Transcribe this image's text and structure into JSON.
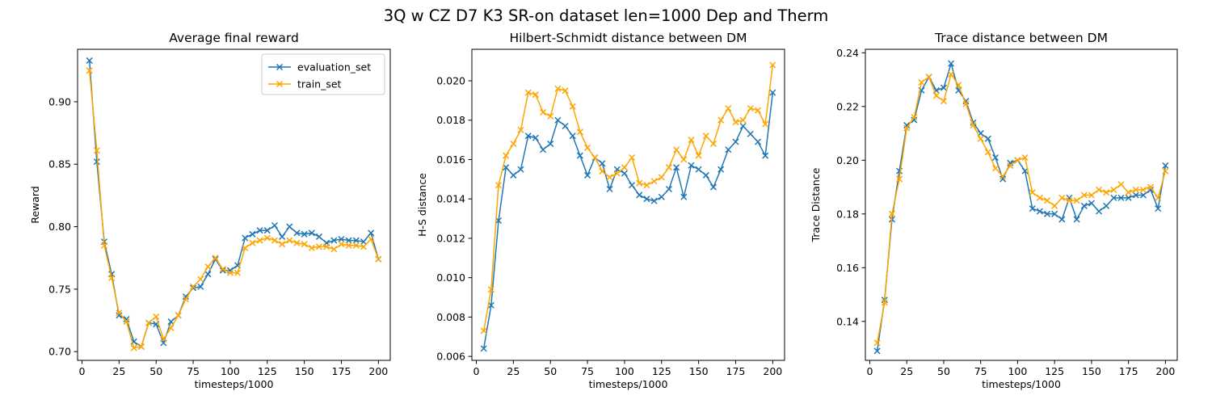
{
  "figure": {
    "suptitle": "3Q w CZ D7 K3 SR-on dataset len=1000 Dep and Therm",
    "colors": {
      "evaluation_set": "#1f77b4",
      "train_set": "#ffa500"
    }
  },
  "chart_data": [
    {
      "type": "line",
      "title": "Average final reward",
      "xlabel": "timesteps/1000",
      "ylabel": "Reward",
      "xlim": [
        -3,
        208
      ],
      "ylim": [
        0.693,
        0.942
      ],
      "xticks": [
        0,
        25,
        50,
        75,
        100,
        125,
        150,
        175,
        200
      ],
      "yticks": [
        0.7,
        0.75,
        0.8,
        0.85,
        0.9
      ],
      "ytick_labels": [
        "0.70",
        "0.75",
        "0.80",
        "0.85",
        "0.90"
      ],
      "legend": {
        "position": "top-right",
        "entries": [
          "evaluation_set",
          "train_set"
        ]
      },
      "marker": "x",
      "x": [
        5,
        10,
        15,
        20,
        25,
        30,
        35,
        40,
        45,
        50,
        55,
        60,
        65,
        70,
        75,
        80,
        85,
        90,
        95,
        100,
        105,
        110,
        115,
        120,
        125,
        130,
        135,
        140,
        145,
        150,
        155,
        160,
        165,
        170,
        175,
        180,
        185,
        190,
        195,
        200
      ],
      "series": [
        {
          "name": "evaluation_set",
          "color": "#1f77b4",
          "values": [
            0.933,
            0.852,
            0.788,
            0.762,
            0.729,
            0.726,
            0.708,
            0.704,
            0.723,
            0.722,
            0.707,
            0.724,
            0.729,
            0.744,
            0.751,
            0.752,
            0.762,
            0.774,
            0.765,
            0.765,
            0.769,
            0.791,
            0.794,
            0.797,
            0.797,
            0.801,
            0.792,
            0.8,
            0.795,
            0.794,
            0.795,
            0.792,
            0.787,
            0.789,
            0.79,
            0.789,
            0.789,
            0.788,
            0.795,
            0.774
          ]
        },
        {
          "name": "train_set",
          "color": "#ffa500",
          "values": [
            0.925,
            0.861,
            0.785,
            0.759,
            0.731,
            0.724,
            0.703,
            0.704,
            0.723,
            0.728,
            0.71,
            0.719,
            0.729,
            0.742,
            0.752,
            0.758,
            0.768,
            0.775,
            0.766,
            0.763,
            0.763,
            0.783,
            0.787,
            0.789,
            0.791,
            0.789,
            0.786,
            0.789,
            0.787,
            0.786,
            0.783,
            0.784,
            0.784,
            0.782,
            0.786,
            0.785,
            0.785,
            0.784,
            0.79,
            0.774
          ]
        }
      ]
    },
    {
      "type": "line",
      "title": "Hilbert-Schmidt distance between DM",
      "xlabel": "timesteps/1000",
      "ylabel": "H-S distance",
      "xlim": [
        -3,
        208
      ],
      "ylim": [
        0.0058,
        0.0216
      ],
      "xticks": [
        0,
        25,
        50,
        75,
        100,
        125,
        150,
        175,
        200
      ],
      "yticks": [
        0.006,
        0.008,
        0.01,
        0.012,
        0.014,
        0.016,
        0.018,
        0.02
      ],
      "ytick_labels": [
        "0.006",
        "0.008",
        "0.010",
        "0.012",
        "0.014",
        "0.016",
        "0.018",
        "0.020"
      ],
      "marker": "x",
      "x": [
        5,
        10,
        15,
        20,
        25,
        30,
        35,
        40,
        45,
        50,
        55,
        60,
        65,
        70,
        75,
        80,
        85,
        90,
        95,
        100,
        105,
        110,
        115,
        120,
        125,
        130,
        135,
        140,
        145,
        150,
        155,
        160,
        165,
        170,
        175,
        180,
        185,
        190,
        195,
        200
      ],
      "series": [
        {
          "name": "evaluation_set",
          "color": "#1f77b4",
          "values": [
            0.0064,
            0.0086,
            0.0129,
            0.0156,
            0.0152,
            0.0155,
            0.0172,
            0.0171,
            0.0165,
            0.0168,
            0.018,
            0.0177,
            0.0172,
            0.0162,
            0.0152,
            0.0161,
            0.0158,
            0.0145,
            0.0155,
            0.0153,
            0.0147,
            0.0142,
            0.014,
            0.0139,
            0.0141,
            0.0145,
            0.0156,
            0.0141,
            0.0157,
            0.0155,
            0.0152,
            0.0146,
            0.0155,
            0.0165,
            0.0169,
            0.0177,
            0.0173,
            0.0169,
            0.0162,
            0.0194
          ]
        },
        {
          "name": "train_set",
          "color": "#ffa500",
          "values": [
            0.0073,
            0.0094,
            0.0147,
            0.0162,
            0.0168,
            0.0175,
            0.0194,
            0.0193,
            0.0184,
            0.0182,
            0.0196,
            0.0195,
            0.0187,
            0.0174,
            0.0166,
            0.0161,
            0.0154,
            0.0151,
            0.0153,
            0.0156,
            0.0161,
            0.0148,
            0.0147,
            0.0149,
            0.0151,
            0.0156,
            0.0165,
            0.016,
            0.017,
            0.0162,
            0.0172,
            0.0168,
            0.018,
            0.0186,
            0.0179,
            0.018,
            0.0186,
            0.0185,
            0.0178,
            0.0208
          ]
        }
      ]
    },
    {
      "type": "line",
      "title": "Trace distance between DM",
      "xlabel": "timesteps/1000",
      "ylabel": "Trace Distance",
      "xlim": [
        -3,
        208
      ],
      "ylim": [
        0.1255,
        0.2413
      ],
      "xticks": [
        0,
        25,
        50,
        75,
        100,
        125,
        150,
        175,
        200
      ],
      "yticks": [
        0.14,
        0.16,
        0.18,
        0.2,
        0.22,
        0.24
      ],
      "ytick_labels": [
        "0.14",
        "0.16",
        "0.18",
        "0.20",
        "0.22",
        "0.24"
      ],
      "marker": "x",
      "x": [
        5,
        10,
        15,
        20,
        25,
        30,
        35,
        40,
        45,
        50,
        55,
        60,
        65,
        70,
        75,
        80,
        85,
        90,
        95,
        100,
        105,
        110,
        115,
        120,
        125,
        130,
        135,
        140,
        145,
        150,
        155,
        160,
        165,
        170,
        175,
        180,
        185,
        190,
        195,
        200
      ],
      "series": [
        {
          "name": "evaluation_set",
          "color": "#1f77b4",
          "values": [
            0.129,
            0.148,
            0.178,
            0.196,
            0.213,
            0.215,
            0.226,
            0.231,
            0.226,
            0.227,
            0.236,
            0.226,
            0.222,
            0.214,
            0.21,
            0.208,
            0.201,
            0.193,
            0.199,
            0.2,
            0.196,
            0.182,
            0.181,
            0.18,
            0.18,
            0.178,
            0.186,
            0.178,
            0.183,
            0.184,
            0.181,
            0.183,
            0.186,
            0.186,
            0.186,
            0.187,
            0.187,
            0.189,
            0.182,
            0.198
          ]
        },
        {
          "name": "train_set",
          "color": "#ffa500",
          "values": [
            0.132,
            0.147,
            0.18,
            0.193,
            0.212,
            0.216,
            0.229,
            0.231,
            0.224,
            0.222,
            0.232,
            0.228,
            0.221,
            0.213,
            0.208,
            0.203,
            0.197,
            0.194,
            0.198,
            0.2,
            0.201,
            0.188,
            0.186,
            0.185,
            0.183,
            0.186,
            0.185,
            0.185,
            0.187,
            0.187,
            0.189,
            0.188,
            0.189,
            0.191,
            0.188,
            0.189,
            0.189,
            0.19,
            0.186,
            0.196
          ]
        }
      ]
    }
  ]
}
